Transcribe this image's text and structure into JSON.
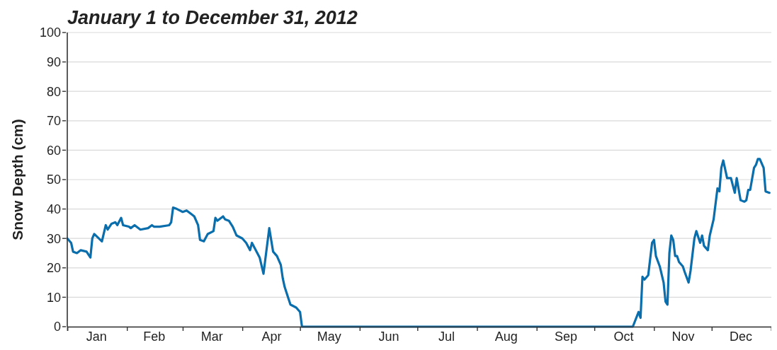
{
  "chart_data": {
    "type": "line",
    "title": "January 1 to December 31, 2012",
    "ylabel": "Snow Depth (cm)",
    "xlim": [
      "2012-01-01",
      "2013-01-01"
    ],
    "xticks": [
      {
        "value": "2012-01-01",
        "label": null
      },
      {
        "value": "2012-01-16",
        "label": "Jan"
      },
      {
        "value": "2012-02-01",
        "label": null
      },
      {
        "value": "2012-02-15",
        "label": "Feb"
      },
      {
        "value": "2012-03-01",
        "label": null
      },
      {
        "value": "2012-03-16",
        "label": "Mar"
      },
      {
        "value": "2012-04-01",
        "label": null
      },
      {
        "value": "2012-04-16",
        "label": "Apr"
      },
      {
        "value": "2012-05-01",
        "label": null
      },
      {
        "value": "2012-05-16",
        "label": "May"
      },
      {
        "value": "2012-06-01",
        "label": null
      },
      {
        "value": "2012-06-16",
        "label": "Jun"
      },
      {
        "value": "2012-07-01",
        "label": null
      },
      {
        "value": "2012-07-16",
        "label": "Jul"
      },
      {
        "value": "2012-08-01",
        "label": null
      },
      {
        "value": "2012-08-16",
        "label": "Aug"
      },
      {
        "value": "2012-09-01",
        "label": null
      },
      {
        "value": "2012-09-16",
        "label": "Sep"
      },
      {
        "value": "2012-10-01",
        "label": null
      },
      {
        "value": "2012-10-16",
        "label": "Oct"
      },
      {
        "value": "2012-11-01",
        "label": null
      },
      {
        "value": "2012-11-16",
        "label": "Nov"
      },
      {
        "value": "2012-12-01",
        "label": null
      },
      {
        "value": "2012-12-16",
        "label": "Dec"
      },
      {
        "value": "2013-01-01",
        "label": null
      }
    ],
    "ylim": [
      0,
      100
    ],
    "yticks": [
      0,
      10,
      20,
      30,
      40,
      50,
      60,
      70,
      80,
      90,
      100
    ],
    "grid": "y",
    "legend": false,
    "series": [
      {
        "color": "#0a6ead",
        "x": [
          "2012-01-01",
          "2012-01-03",
          "2012-01-04",
          "2012-01-06",
          "2012-01-08",
          "2012-01-11",
          "2012-01-13",
          "2012-01-14",
          "2012-01-15",
          "2012-01-19",
          "2012-01-21",
          "2012-01-22",
          "2012-01-24",
          "2012-01-26",
          "2012-01-27",
          "2012-01-29",
          "2012-01-30",
          "2012-02-02",
          "2012-02-03",
          "2012-02-05",
          "2012-02-08",
          "2012-02-12",
          "2012-02-14",
          "2012-02-15",
          "2012-02-18",
          "2012-02-23",
          "2012-02-24",
          "2012-02-25",
          "2012-02-27",
          "2012-03-01",
          "2012-03-03",
          "2012-03-05",
          "2012-03-07",
          "2012-03-09",
          "2012-03-10",
          "2012-03-12",
          "2012-03-14",
          "2012-03-17",
          "2012-03-18",
          "2012-03-19",
          "2012-03-22",
          "2012-03-23",
          "2012-03-25",
          "2012-03-27",
          "2012-03-29",
          "2012-04-01",
          "2012-04-03",
          "2012-04-05",
          "2012-04-06",
          "2012-04-10",
          "2012-04-12",
          "2012-04-15",
          "2012-04-17",
          "2012-04-19",
          "2012-04-21",
          "2012-04-22",
          "2012-04-23",
          "2012-04-25",
          "2012-04-26",
          "2012-04-29",
          "2012-05-01",
          "2012-05-02",
          "2012-10-21",
          "2012-10-24",
          "2012-10-25",
          "2012-10-26",
          "2012-10-27",
          "2012-10-29",
          "2012-10-31",
          "2012-11-01",
          "2012-11-02",
          "2012-11-04",
          "2012-11-06",
          "2012-11-07",
          "2012-11-08",
          "2012-11-09",
          "2012-11-10",
          "2012-11-11",
          "2012-11-12",
          "2012-11-13",
          "2012-11-14",
          "2012-11-16",
          "2012-11-17",
          "2012-11-19",
          "2012-11-20",
          "2012-11-22",
          "2012-11-23",
          "2012-11-25",
          "2012-11-26",
          "2012-11-27",
          "2012-11-29",
          "2012-11-30",
          "2012-12-02",
          "2012-12-04",
          "2012-12-05",
          "2012-12-06",
          "2012-12-07",
          "2012-12-09",
          "2012-12-11",
          "2012-12-13",
          "2012-12-14",
          "2012-12-16",
          "2012-12-18",
          "2012-12-19",
          "2012-12-20",
          "2012-12-21",
          "2012-12-23",
          "2012-12-24",
          "2012-12-25",
          "2012-12-26",
          "2012-12-28",
          "2012-12-29",
          "2012-12-31"
        ],
        "values": [
          30,
          28.5,
          25.5,
          25,
          26,
          25.5,
          23.5,
          30,
          31.5,
          29,
          34.5,
          33,
          35,
          35.5,
          34.5,
          37,
          34.5,
          34,
          33.5,
          34.5,
          33,
          33.5,
          34.5,
          34,
          34,
          34.5,
          35.5,
          40.5,
          40,
          39,
          39.5,
          38.5,
          37.5,
          34.5,
          29.5,
          29,
          31.5,
          32.5,
          37,
          36,
          37.5,
          36.5,
          36,
          34,
          31,
          30,
          28.5,
          26,
          28.5,
          23.5,
          18,
          33.5,
          25.5,
          24,
          21,
          16.5,
          13.5,
          9.5,
          7.5,
          6.5,
          5,
          0,
          0,
          5,
          3,
          17,
          16,
          17.5,
          28.5,
          29.5,
          24,
          20.5,
          15,
          8.5,
          7.5,
          25,
          31,
          29.5,
          24,
          24,
          22,
          20.5,
          18.5,
          15,
          19,
          30,
          32.5,
          28.5,
          31,
          27.5,
          26,
          31,
          36.5,
          47,
          46,
          54,
          56.5,
          50.5,
          50.5,
          45.5,
          50.5,
          43,
          42.5,
          43,
          46.5,
          46.5,
          54,
          55,
          57,
          57,
          54,
          46,
          45.5
        ]
      }
    ]
  }
}
